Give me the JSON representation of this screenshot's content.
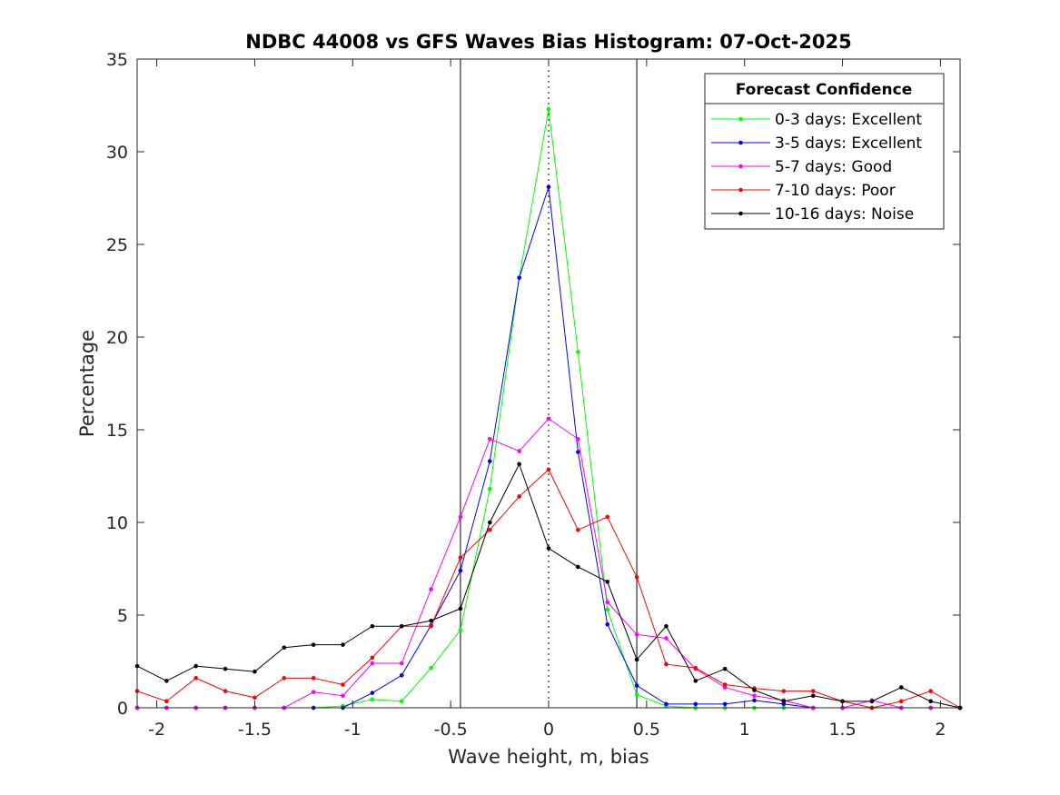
{
  "chart_data": {
    "type": "line",
    "title": "NDBC 44008 vs GFS Waves Bias Histogram: 07-Oct-2025",
    "xlabel": "Wave height, m, bias",
    "ylabel": "Percentage",
    "xlim": [
      -2.1,
      2.1
    ],
    "ylim": [
      0,
      35
    ],
    "xticks": [
      -2,
      -1.5,
      -1,
      -0.5,
      0,
      0.5,
      1,
      1.5,
      2
    ],
    "xtick_labels": [
      "-2",
      "-1.5",
      "-1",
      "-0.5",
      "0",
      "0.5",
      "1",
      "1.5",
      "2"
    ],
    "yticks": [
      0,
      5,
      10,
      15,
      20,
      25,
      30,
      35
    ],
    "ytick_labels": [
      "0",
      "5",
      "10",
      "15",
      "20",
      "25",
      "30",
      "35"
    ],
    "vertical_lines": [
      {
        "x": -0.45,
        "style": "solid"
      },
      {
        "x": 0,
        "style": "dotted"
      },
      {
        "x": 0.45,
        "style": "solid"
      }
    ],
    "legend": {
      "title": "Forecast Confidence",
      "location": "top-right"
    },
    "x": [
      -2.1,
      -1.95,
      -1.8,
      -1.65,
      -1.5,
      -1.35,
      -1.2,
      -1.05,
      -0.9,
      -0.75,
      -0.6,
      -0.45,
      -0.3,
      -0.15,
      0,
      0.15,
      0.3,
      0.45,
      0.6,
      0.75,
      0.9,
      1.05,
      1.2,
      1.35,
      1.5,
      1.65,
      1.8,
      1.95,
      2.1
    ],
    "series": [
      {
        "name": "0-3 days: Excellent",
        "color": "#00ff00",
        "values": [
          0,
          0,
          0,
          0,
          0,
          0,
          0,
          0.1,
          0.45,
          0.35,
          2.15,
          4.2,
          11.8,
          23.2,
          32.3,
          19.2,
          5.3,
          0.7,
          0.1,
          0,
          0,
          0,
          0,
          0,
          0,
          0,
          0,
          0,
          0
        ]
      },
      {
        "name": "3-5 days: Excellent",
        "color": "#0000ff",
        "values": [
          0,
          0,
          0,
          0,
          0,
          0,
          0,
          0,
          0.8,
          1.75,
          4.45,
          7.4,
          13.3,
          23.2,
          28.1,
          13.8,
          4.5,
          1.2,
          0.2,
          0.2,
          0.2,
          0.4,
          0.2,
          0,
          0,
          0,
          0,
          0,
          0
        ]
      },
      {
        "name": "5-7 days: Good",
        "color": "#ff00ff",
        "values": [
          0,
          0,
          0,
          0,
          0,
          0,
          0.85,
          0.65,
          2.4,
          2.4,
          6.4,
          10.3,
          14.5,
          13.85,
          15.6,
          14.5,
          5.7,
          3.95,
          3.75,
          2.1,
          1.1,
          0.65,
          0.4,
          0,
          0,
          0.4,
          0,
          0,
          0
        ]
      },
      {
        "name": "7-10 days: Poor",
        "color": "#ff0000",
        "values": [
          0.9,
          0.35,
          1.6,
          0.9,
          0.55,
          1.6,
          1.6,
          1.25,
          2.7,
          4.4,
          4.4,
          8.1,
          9.6,
          11.4,
          12.85,
          9.6,
          10.3,
          7.05,
          2.35,
          2.15,
          1.25,
          1.05,
          0.9,
          0.9,
          0.35,
          0,
          0.35,
          0.9,
          0
        ]
      },
      {
        "name": "10-16 days: Noise",
        "color": "#000000",
        "values": [
          2.25,
          1.45,
          2.25,
          2.1,
          1.95,
          3.25,
          3.4,
          3.4,
          4.4,
          4.4,
          4.7,
          5.35,
          10.0,
          13.15,
          8.6,
          7.6,
          6.8,
          2.6,
          4.4,
          1.45,
          2.1,
          0.95,
          0.35,
          0.65,
          0.35,
          0.35,
          1.1,
          0.35,
          0
        ]
      }
    ]
  }
}
